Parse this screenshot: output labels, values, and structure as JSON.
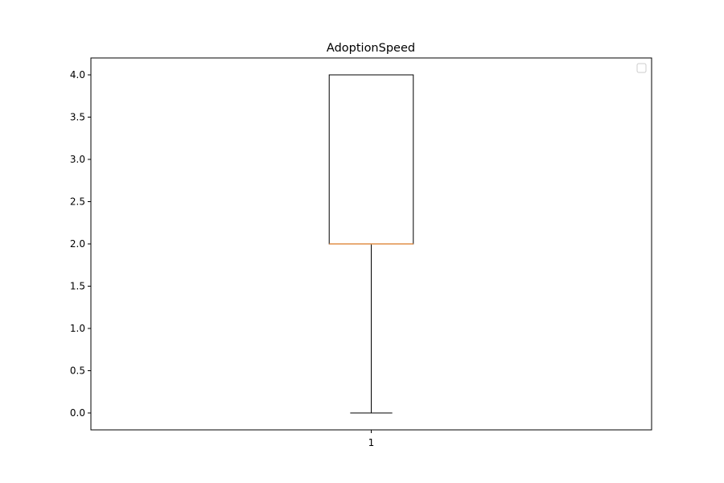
{
  "chart_data": {
    "type": "box",
    "title": "AdoptionSpeed",
    "xlabel": "",
    "ylabel": "",
    "categories": [
      "1"
    ],
    "boxes": [
      {
        "category": "1",
        "whisker_low": 0.0,
        "q1": 2.0,
        "median": 2.0,
        "q3": 4.0,
        "whisker_high": 4.0
      }
    ],
    "ylim": [
      -0.2,
      4.2
    ],
    "yticks": [
      0.0,
      0.5,
      1.0,
      1.5,
      2.0,
      2.5,
      3.0,
      3.5,
      4.0
    ],
    "ytick_labels": [
      "0.0",
      "0.5",
      "1.0",
      "1.5",
      "2.0",
      "2.5",
      "3.0",
      "3.5",
      "4.0"
    ],
    "grid": false,
    "legend": {
      "position": "top-right",
      "entries": []
    },
    "colors": {
      "box": "#000000",
      "median": "#e08f49",
      "whisker": "#000000"
    }
  }
}
